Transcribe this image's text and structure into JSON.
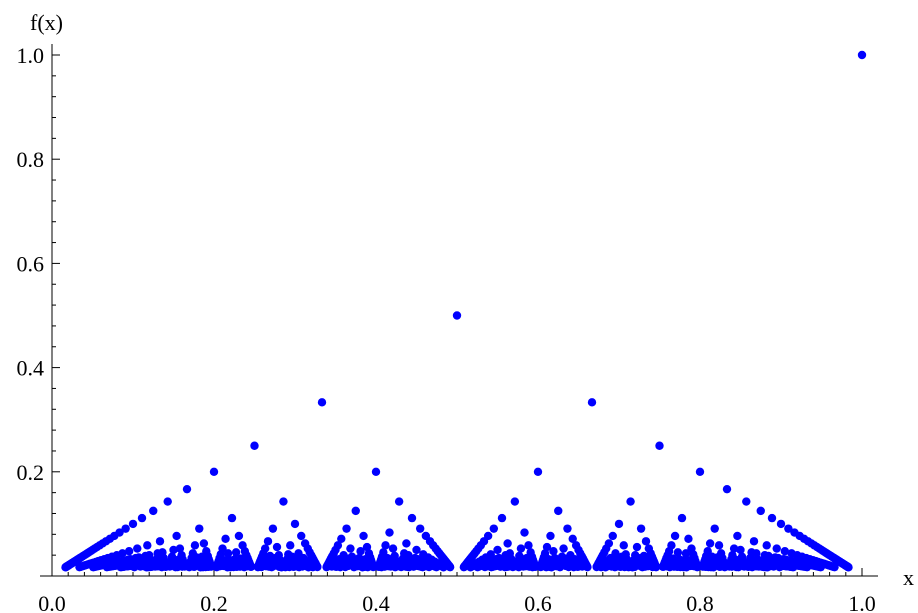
{
  "chart_data": {
    "type": "scatter",
    "description_of_points": "",
    "xlabel": "x",
    "ylabel": "f(x)",
    "xlim": [
      0.0,
      1.0
    ],
    "ylim": [
      0.0,
      1.0
    ],
    "x_ticks": [
      "0.0",
      "0.2",
      "0.4",
      "0.6",
      "0.8",
      "1.0"
    ],
    "y_ticks": [
      "0.2",
      "0.4",
      "0.6",
      "0.8",
      "1.0"
    ],
    "x_tick_values": [
      0.0,
      0.2,
      0.4,
      0.6,
      0.8,
      1.0
    ],
    "y_tick_values": [
      0.2,
      0.4,
      0.6,
      0.8,
      1.0
    ],
    "max_denominator": 60,
    "marker_color": "#0000ff",
    "grid": false,
    "series": [
      {
        "values_rule": "f(p/q) = 1/q for reduced fractions p/q in (0,1], q up to max_denominator"
      }
    ]
  }
}
